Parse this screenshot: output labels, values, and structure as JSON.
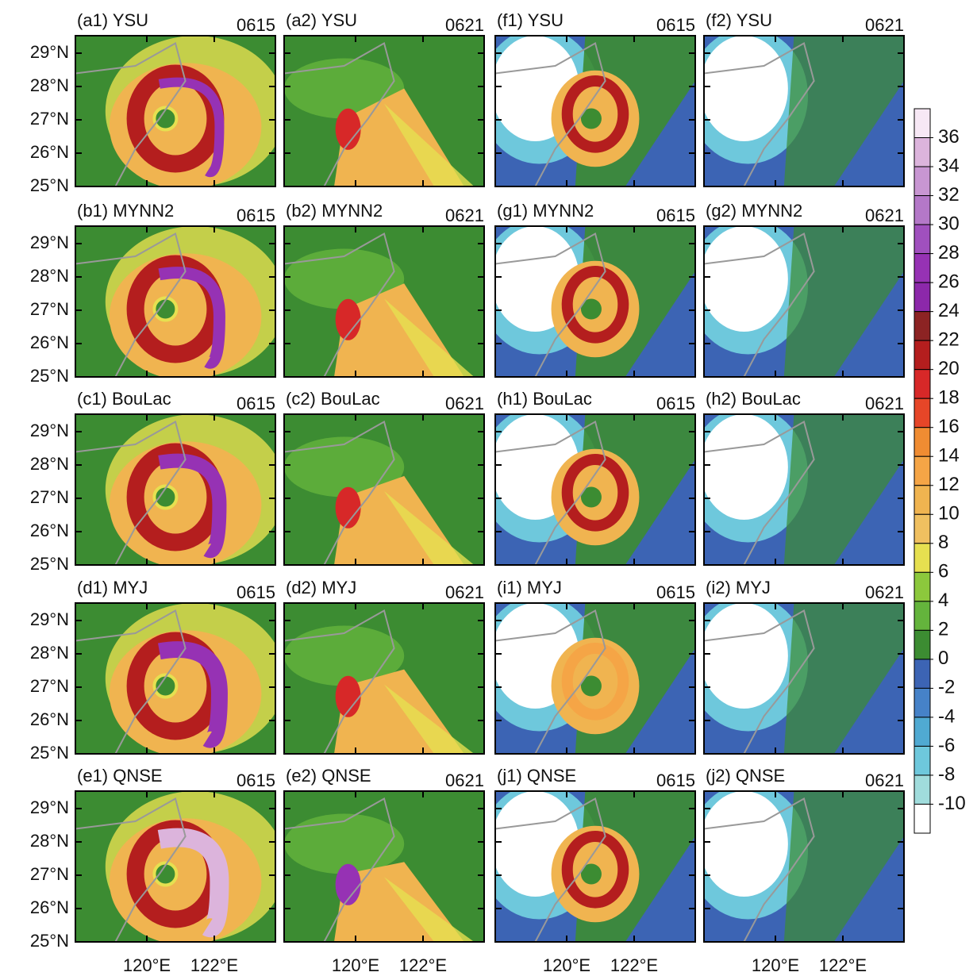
{
  "panels": [
    {
      "label": "(a1) YSU",
      "time": "0615"
    },
    {
      "label": "(a2) YSU",
      "time": "0621"
    },
    {
      "label": "(f1) YSU",
      "time": "0615"
    },
    {
      "label": "(f2) YSU",
      "time": "0621"
    },
    {
      "label": "(b1) MYNN2",
      "time": "0615"
    },
    {
      "label": "(b2) MYNN2",
      "time": "0621"
    },
    {
      "label": "(g1) MYNN2",
      "time": "0615"
    },
    {
      "label": "(g2) MYNN2",
      "time": "0621"
    },
    {
      "label": "(c1) BouLac",
      "time": "0615"
    },
    {
      "label": "(c2) BouLac",
      "time": "0621"
    },
    {
      "label": "(h1) BouLac",
      "time": "0615"
    },
    {
      "label": "(h2) BouLac",
      "time": "0621"
    },
    {
      "label": "(d1) MYJ",
      "time": "0615"
    },
    {
      "label": "(d2) MYJ",
      "time": "0621"
    },
    {
      "label": "(i1) MYJ",
      "time": "0615"
    },
    {
      "label": "(i2) MYJ",
      "time": "0621"
    },
    {
      "label": "(e1) QNSE",
      "time": "0615"
    },
    {
      "label": "(e2) QNSE",
      "time": "0621"
    },
    {
      "label": "(j1) QNSE",
      "time": "0615"
    },
    {
      "label": "(j2) QNSE",
      "time": "0621"
    }
  ],
  "y_axis_labels": [
    "29°N",
    "28°N",
    "27°N",
    "26°N",
    "25°N"
  ],
  "x_axis_labels": [
    "120°E",
    "122°E"
  ],
  "colorbar": {
    "ticks": [
      36,
      34,
      32,
      30,
      28,
      26,
      24,
      22,
      20,
      18,
      16,
      14,
      12,
      10,
      8,
      6,
      4,
      2,
      0,
      -2,
      -4,
      -6,
      -8,
      -10
    ],
    "colors": [
      "#f7e8f5",
      "#dcb4dc",
      "#c896d2",
      "#b478c8",
      "#a050be",
      "#9632b4",
      "#8c28aa",
      "#8c2323",
      "#b41e1e",
      "#d72828",
      "#e64628",
      "#f08c32",
      "#f5a546",
      "#f0b450",
      "#f0c060",
      "#e6e050",
      "#8cc83c",
      "#64b43c",
      "#3c8c32",
      "#3c64b4",
      "#4682c8",
      "#50aad2",
      "#6ec8dc",
      "#a0dcdc",
      "#ffffff"
    ]
  }
}
